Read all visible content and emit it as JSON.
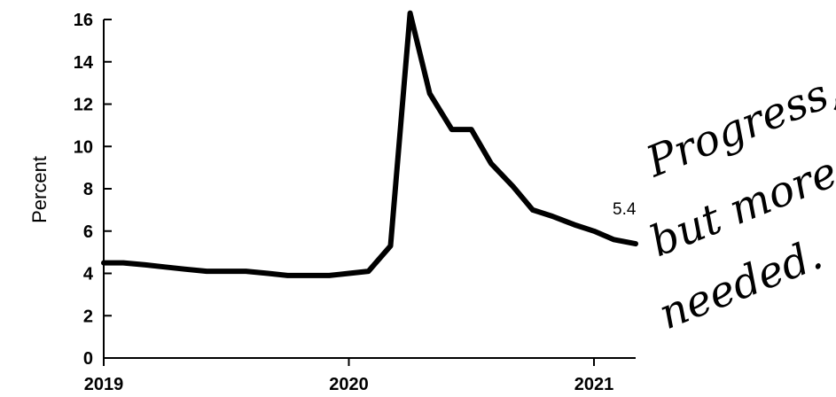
{
  "chart_data": {
    "type": "line",
    "ylabel": "Percent",
    "xlabel": "",
    "ylim": [
      0,
      16
    ],
    "yticks": [
      0,
      2,
      4,
      6,
      8,
      10,
      12,
      14,
      16
    ],
    "xlim": [
      2019,
      2021.17
    ],
    "xticks": [
      2019,
      2020,
      2021
    ],
    "xtick_labels": [
      "2019",
      "2020",
      "2021"
    ],
    "grid": false,
    "series": [
      {
        "color": "#000000",
        "x": [
          2019.0,
          2019.08,
          2019.17,
          2019.25,
          2019.33,
          2019.42,
          2019.5,
          2019.58,
          2019.67,
          2019.75,
          2019.83,
          2019.92,
          2020.0,
          2020.08,
          2020.17,
          2020.25,
          2020.33,
          2020.42,
          2020.5,
          2020.58,
          2020.67,
          2020.75,
          2020.83,
          2020.92,
          2021.0,
          2021.08,
          2021.17
        ],
        "y": [
          4.5,
          4.5,
          4.4,
          4.3,
          4.2,
          4.1,
          4.1,
          4.1,
          4.0,
          3.9,
          3.9,
          3.9,
          4.0,
          4.1,
          5.3,
          16.3,
          12.5,
          10.8,
          10.8,
          9.2,
          8.1,
          7.0,
          6.7,
          6.3,
          6.0,
          5.6,
          5.4
        ]
      }
    ],
    "annotations": [
      {
        "text": "5.4"
      }
    ],
    "handwritten_note": [
      "Progress,",
      "but more",
      "needed."
    ]
  }
}
